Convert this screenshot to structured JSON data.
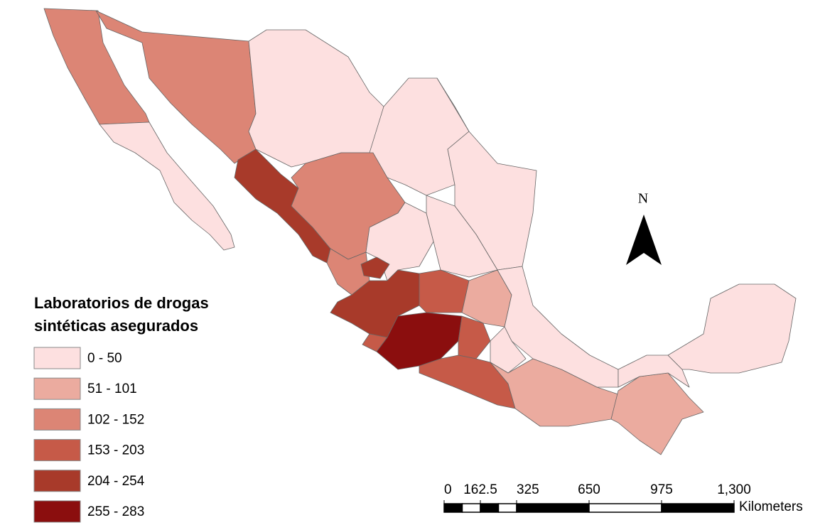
{
  "legend": {
    "title": [
      "Laboratorios de drogas",
      "sintéticas asegurados"
    ],
    "items": [
      {
        "label": "0 - 50",
        "color": "#fde0e0"
      },
      {
        "label": "51 - 101",
        "color": "#ebab9f"
      },
      {
        "label": "102 - 152",
        "color": "#dc8575"
      },
      {
        "label": "153 - 203",
        "color": "#c65a48"
      },
      {
        "label": "204 - 254",
        "color": "#a83a2a"
      },
      {
        "label": "255 - 283",
        "color": "#8b0e0e"
      }
    ]
  },
  "north": "N",
  "scale": {
    "ticks": [
      0,
      162.5,
      325,
      650,
      975,
      {
        "value": 1300,
        "label": "1,300"
      }
    ],
    "unit": "Kilometers"
  }
}
